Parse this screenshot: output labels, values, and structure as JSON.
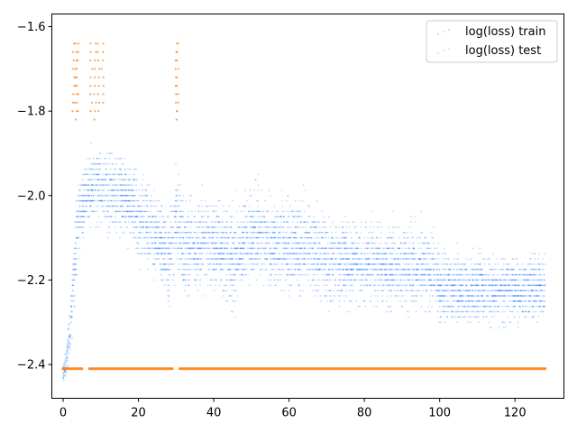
{
  "chart_data": {
    "type": "scatter",
    "title": "",
    "xlabel": "",
    "ylabel": "",
    "xlim": [
      -3,
      133
    ],
    "ylim": [
      -2.48,
      -1.57
    ],
    "xticks": [
      0,
      20,
      40,
      60,
      80,
      100,
      120
    ],
    "xtick_labels": [
      "0",
      "20",
      "40",
      "60",
      "80",
      "100",
      "120"
    ],
    "yticks": [
      -2.4,
      -2.2,
      -2.0,
      -1.8,
      -1.6
    ],
    "ytick_labels": [
      "−2.4",
      "−2.2",
      "−2.0",
      "−1.8",
      "−1.6"
    ],
    "grid": false,
    "legend_position": "top-right",
    "series": [
      {
        "name": "log(loss) train",
        "color": "#1f77ff",
        "marker": "dot",
        "trend": {
          "x": [
            0,
            1,
            2,
            3,
            4,
            6,
            8,
            10,
            12,
            15,
            18,
            20,
            25,
            28,
            30,
            32,
            35,
            40,
            45,
            50,
            55,
            60,
            65,
            70,
            80,
            90,
            99,
            100,
            110,
            120,
            128
          ],
          "center": [
            -2.42,
            -2.38,
            -2.3,
            -2.18,
            -2.06,
            -2.0,
            -1.98,
            -1.98,
            -1.99,
            -2.0,
            -2.02,
            -2.05,
            -2.1,
            -2.15,
            -2.05,
            -2.12,
            -2.12,
            -2.11,
            -2.15,
            -2.08,
            -2.11,
            -2.12,
            -2.12,
            -2.15,
            -2.16,
            -2.17,
            -2.17,
            -2.22,
            -2.22,
            -2.22,
            -2.22
          ],
          "spread": [
            0.02,
            0.03,
            0.06,
            0.08,
            0.08,
            0.07,
            0.07,
            0.08,
            0.08,
            0.08,
            0.08,
            0.08,
            0.08,
            0.09,
            0.1,
            0.09,
            0.09,
            0.09,
            0.09,
            0.09,
            0.09,
            0.09,
            0.09,
            0.09,
            0.08,
            0.08,
            0.08,
            0.07,
            0.07,
            0.07,
            0.07
          ]
        }
      },
      {
        "name": "log(loss) test",
        "color": "#ff7f0e",
        "marker": "dot",
        "baseline_y": -2.41,
        "baseline_x_range": [
          0,
          128
        ],
        "spike_columns": [
          {
            "x": 2.8,
            "y_range": [
              -1.8,
              -1.64
            ]
          },
          {
            "x": 3.3,
            "y_range": [
              -1.82,
              -1.64
            ]
          },
          {
            "x": 3.8,
            "y_range": [
              -1.8,
              -1.64
            ]
          },
          {
            "x": 7.5,
            "y_range": [
              -1.8,
              -1.64
            ]
          },
          {
            "x": 8.5,
            "y_range": [
              -1.82,
              -1.64
            ]
          },
          {
            "x": 9.5,
            "y_range": [
              -1.8,
              -1.64
            ]
          },
          {
            "x": 10.5,
            "y_range": [
              -1.78,
              -1.64
            ]
          },
          {
            "x": 30.0,
            "y_range": [
              -1.82,
              -1.64
            ]
          },
          {
            "x": 30.5,
            "y_range": [
              -1.8,
              -1.64
            ]
          }
        ]
      }
    ]
  }
}
